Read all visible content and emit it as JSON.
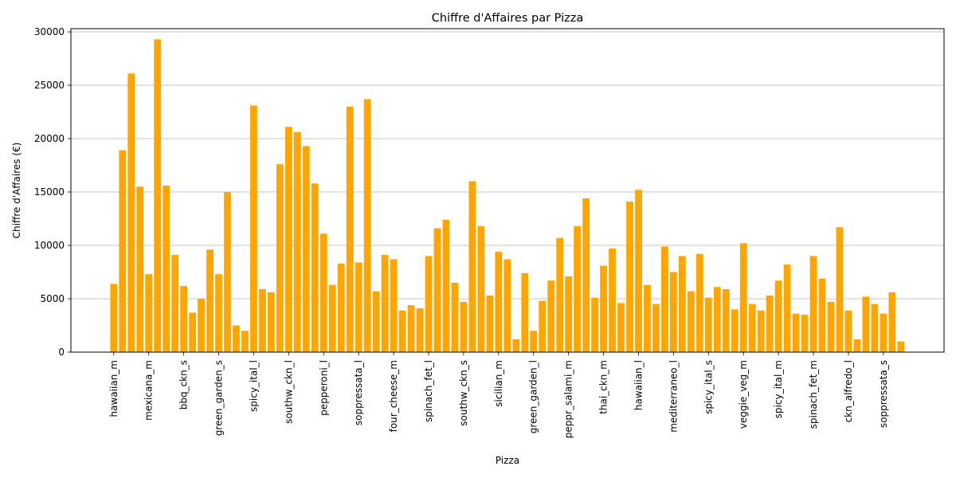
{
  "chart_data": {
    "type": "bar",
    "title": "Chiffre d'Affaires par Pizza",
    "xlabel": "Pizza",
    "ylabel": "Chiffre d'Affaires (€)",
    "ylim": [
      0,
      30000
    ],
    "yticks": [
      0,
      5000,
      10000,
      15000,
      20000,
      25000,
      30000
    ],
    "grid": "y",
    "bar_color": "#ffa500",
    "x_tick_labels": [
      "hawaiian_m",
      "mexicana_m",
      "bbq_ckn_s",
      "green_garden_s",
      "spicy_ital_l",
      "southw_ckn_l",
      "pepperoni_l",
      "soppressata_l",
      "four_cheese_m",
      "spinach_fet_l",
      "southw_ckn_s",
      "sicilian_m",
      "green_garden_l",
      "peppr_salami_m",
      "thai_ckn_m",
      "hawaiian_l",
      "mediterraneo_l",
      "spicy_ital_s",
      "veggie_veg_m",
      "spicy_ital_m",
      "spinach_fet_m",
      "ckn_alfredo_l",
      "soppressata_s"
    ],
    "tick_every": 4,
    "values": [
      6400,
      18900,
      26100,
      15500,
      7300,
      29300,
      15600,
      9100,
      6200,
      3700,
      5000,
      9600,
      7300,
      15000,
      2500,
      2000,
      23100,
      5900,
      5600,
      17600,
      21100,
      20600,
      19300,
      15800,
      11100,
      6300,
      8300,
      23000,
      8400,
      23700,
      5700,
      9100,
      8700,
      3900,
      4400,
      4100,
      9000,
      11600,
      12400,
      6500,
      4700,
      16000,
      11800,
      5300,
      9400,
      8700,
      1200,
      7400,
      2000,
      4800,
      6700,
      10700,
      7100,
      11800,
      14400,
      5100,
      8100,
      9700,
      4600,
      14100,
      15200,
      6300,
      4500,
      9900,
      7500,
      9000,
      5700,
      9200,
      5100,
      6100,
      5900,
      4000,
      10200,
      4500,
      3900,
      5300,
      6700,
      8200,
      3600,
      3500,
      9000,
      6900,
      4700,
      11700,
      3900,
      1200,
      5200,
      4500,
      3600,
      5600,
      1000
    ]
  }
}
